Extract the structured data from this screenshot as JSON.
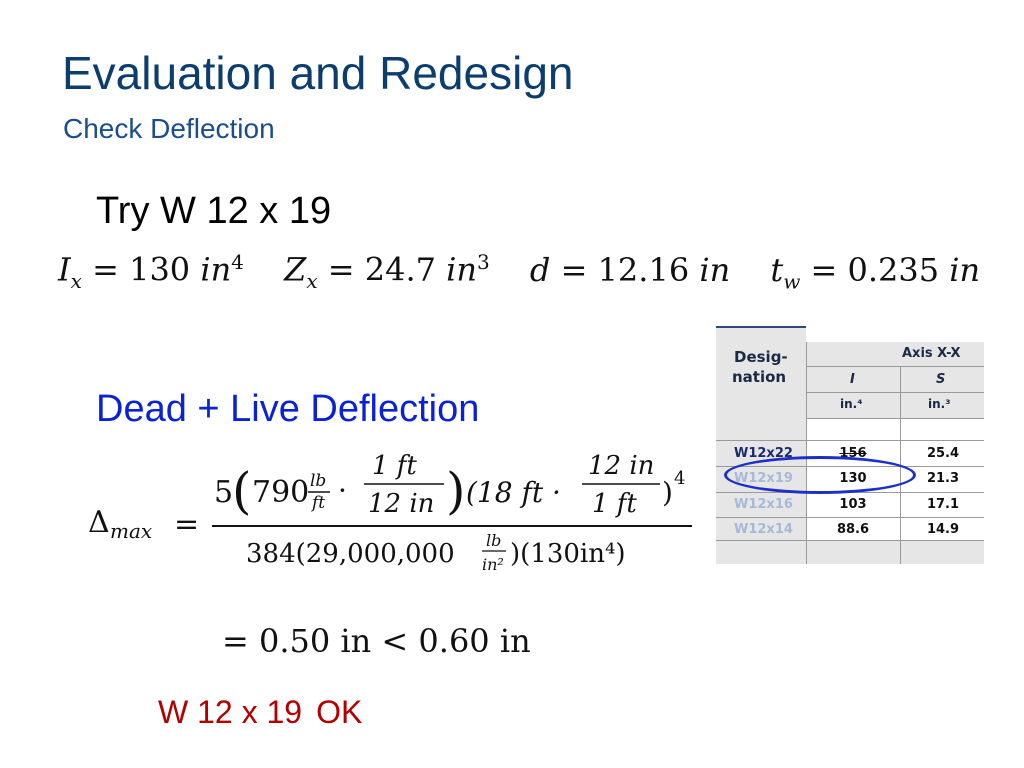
{
  "slide": {
    "title": "Evaluation and Redesign",
    "subtitle": "Check Deflection",
    "try_text": "Try W 12 x 19",
    "properties": [
      {
        "sym": "I",
        "sub": "x",
        "eq": " = 130 ",
        "unit": "in",
        "exp": "4"
      },
      {
        "sym": "Z",
        "sub": "x",
        "eq": " = 24.7 ",
        "unit": "in",
        "exp": "3"
      },
      {
        "sym": "d",
        "sub": "",
        "eq": " = 12.16 ",
        "unit": "in",
        "exp": ""
      },
      {
        "sym": "t",
        "sub": "w",
        "eq": " = 0.235 ",
        "unit": "in",
        "exp": ""
      }
    ],
    "section_heading": "Dead + Live Deflection",
    "formula": {
      "lhs_symbol": "Δ",
      "lhs_sub": "max",
      "eq": "=",
      "num_coef": "5",
      "load": "790",
      "load_unit_num": "lb",
      "load_unit_den": "ft",
      "conv1_num": "1 ft",
      "conv1_den": "12 in",
      "span": "(18 ft · ",
      "conv2_num": "12 in",
      "conv2_den": "1 ft",
      "power": "4",
      "den_prefix": "384(29,000,000",
      "den_unit_num": "lb",
      "den_unit_den": "in²",
      "den_suffix": ")(130in⁴)"
    },
    "result": "= 0.50 in < 0.60 in",
    "conclusion": {
      "shape": "W 12 x 19",
      "verdict": "OK"
    }
  },
  "table": {
    "header_left_line1": "Desig-",
    "header_left_line2": "nation",
    "group_header": "Axis X-X",
    "col_headers": [
      "I",
      "S"
    ],
    "col_units": [
      "in.⁴",
      "in.³"
    ],
    "rows": [
      {
        "designation": "W12x22",
        "I": "156",
        "S": "25.4",
        "faded": false
      },
      {
        "designation": "W12x19",
        "I": "130",
        "S": "21.3",
        "faded": true
      },
      {
        "designation": "W12x16",
        "I": "103",
        "S": "17.1",
        "faded": true
      },
      {
        "designation": "W12x14",
        "I": "88.6",
        "S": "14.9",
        "faded": true
      }
    ],
    "highlighted_row": "W12x19",
    "highlight_color": "#1c2fc7"
  },
  "colors": {
    "title": "#0b3d6e",
    "heading_blue": "#0b22d4",
    "ok_red": "#b20000"
  }
}
